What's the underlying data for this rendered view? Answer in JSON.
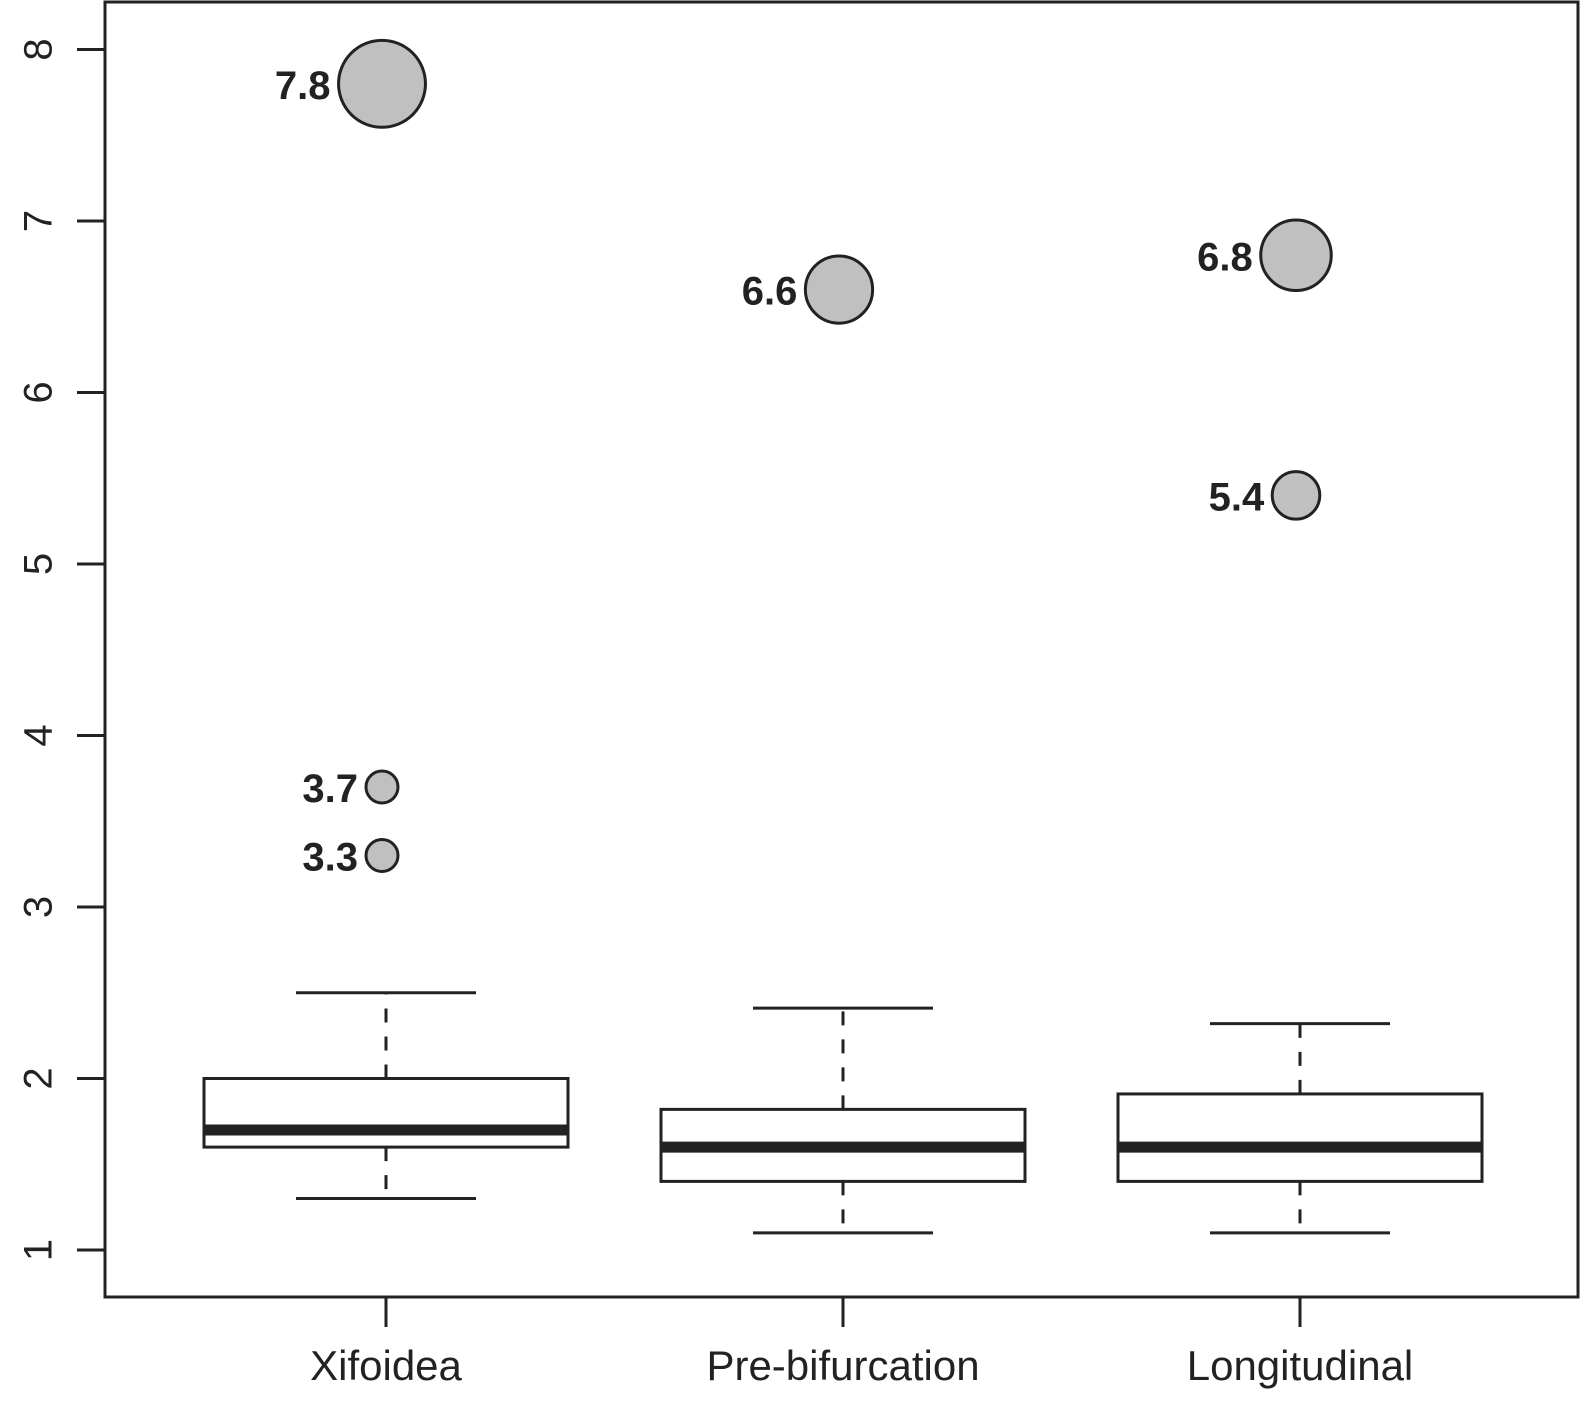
{
  "chart_data": {
    "type": "boxplot",
    "title": "",
    "xlabel": "",
    "ylabel": "",
    "ylim": [
      1,
      8
    ],
    "yticks": [
      "1",
      "2",
      "3",
      "4",
      "5",
      "6",
      "7",
      "8"
    ],
    "grid": false,
    "legend": "none",
    "colors": {
      "outlier_fill": "#c0c0c0",
      "stroke": "#222222"
    },
    "categories": [
      "Xifoidea",
      "Pre-bifurcation",
      "Longitudinal"
    ],
    "boxes": [
      {
        "category": "Xifoidea",
        "whisker_low": 1.3,
        "q1": 1.6,
        "median": 1.7,
        "q3": 2.0,
        "whisker_high": 2.5,
        "outliers": [
          {
            "value": 3.3,
            "label": "3.3"
          },
          {
            "value": 3.7,
            "label": "3.7"
          },
          {
            "value": 7.8,
            "label": "7.8"
          }
        ]
      },
      {
        "category": "Pre-bifurcation",
        "whisker_low": 1.1,
        "q1": 1.4,
        "median": 1.6,
        "q3": 1.82,
        "whisker_high": 2.41,
        "outliers": [
          {
            "value": 6.6,
            "label": "6.6"
          }
        ]
      },
      {
        "category": "Longitudinal",
        "whisker_low": 1.1,
        "q1": 1.4,
        "median": 1.6,
        "q3": 1.91,
        "whisker_high": 2.32,
        "outliers": [
          {
            "value": 5.4,
            "label": "5.4"
          },
          {
            "value": 6.8,
            "label": "6.8"
          }
        ]
      }
    ]
  }
}
